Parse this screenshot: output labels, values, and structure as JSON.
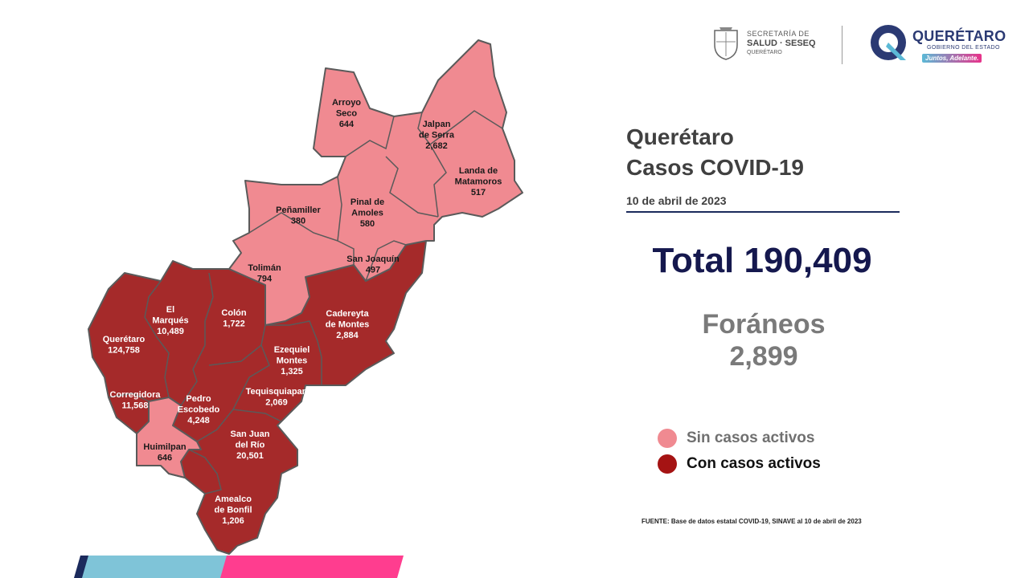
{
  "header": {
    "seseq_line1": "SECRETARÍA DE",
    "seseq_line2": "SALUD · SESEQ",
    "seseq_line3": "QUERÉTARO",
    "gov_title": "QUERÉTARO",
    "gov_subtitle": "GOBIERNO DEL ESTADO",
    "gov_tagline": "Juntos, Adelante."
  },
  "title_line1": "Querétaro",
  "title_line2": "Casos COVID-19",
  "date": "10 de abril  de 2023",
  "total": "Total 190,409",
  "foraneos_label": "Foráneos",
  "foraneos_value": "2,899",
  "legend": {
    "no_active": {
      "label": "Sin casos activos",
      "color": "#f08a91"
    },
    "active": {
      "label": "Con casos activos",
      "color": "#a51313"
    }
  },
  "source": "FUENTE: Base de datos estatal  COVID-19,  SINAVE  al 10 de abril de 2023",
  "colors": {
    "active_fill": "#a52a2a",
    "inactive_fill": "#f08a91",
    "border": "#5a5a5a"
  },
  "municipalities": [
    {
      "name_lines": [
        "Arroyo",
        "Seco"
      ],
      "cases": "644",
      "status": "inactive"
    },
    {
      "name_lines": [
        "Jalpan",
        "de Serra"
      ],
      "cases": "2,682",
      "status": "inactive"
    },
    {
      "name_lines": [
        "Landa de",
        "Matamoros"
      ],
      "cases": "517",
      "status": "inactive"
    },
    {
      "name_lines": [
        "Pinal de",
        "Amoles"
      ],
      "cases": "580",
      "status": "inactive"
    },
    {
      "name_lines": [
        "Peñamiller"
      ],
      "cases": "380",
      "status": "inactive"
    },
    {
      "name_lines": [
        "Tolimán"
      ],
      "cases": "794",
      "status": "inactive"
    },
    {
      "name_lines": [
        "San Joaquín"
      ],
      "cases": "497",
      "status": "inactive"
    },
    {
      "name_lines": [
        "Cadereyta",
        "de Montes"
      ],
      "cases": "2,884",
      "status": "active"
    },
    {
      "name_lines": [
        "El",
        "Marqués"
      ],
      "cases": "10,489",
      "status": "active"
    },
    {
      "name_lines": [
        "Colón"
      ],
      "cases": "1,722",
      "status": "active"
    },
    {
      "name_lines": [
        "Querétaro"
      ],
      "cases": "124,758",
      "status": "active"
    },
    {
      "name_lines": [
        "Ezequiel",
        "Montes"
      ],
      "cases": "1,325",
      "status": "active"
    },
    {
      "name_lines": [
        "Tequisquiapan"
      ],
      "cases": "2,069",
      "status": "active"
    },
    {
      "name_lines": [
        "Corregidora"
      ],
      "cases": "11,568",
      "status": "active"
    },
    {
      "name_lines": [
        "Pedro",
        "Escobedo"
      ],
      "cases": "4,248",
      "status": "active"
    },
    {
      "name_lines": [
        "Huimilpan"
      ],
      "cases": "646",
      "status": "inactive"
    },
    {
      "name_lines": [
        "San Juan",
        "del Río"
      ],
      "cases": "20,501",
      "status": "active"
    },
    {
      "name_lines": [
        "Amealco",
        "de Bonfil"
      ],
      "cases": "1,206",
      "status": "active"
    }
  ]
}
